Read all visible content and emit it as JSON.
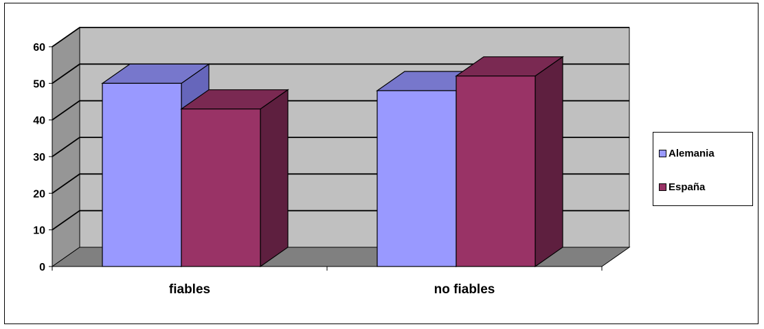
{
  "chart_data": {
    "type": "bar",
    "style": "3d-clustered-column",
    "categories": [
      "fiables",
      "no fiables"
    ],
    "series": [
      {
        "name": "Alemania",
        "values": [
          50,
          48
        ],
        "color": "#9999FF",
        "top_color": "#7777CC",
        "side_color": "#6666BB"
      },
      {
        "name": "España",
        "values": [
          43,
          52
        ],
        "color": "#993366",
        "top_color": "#7A2952",
        "side_color": "#5E1F3F"
      }
    ],
    "ylim": [
      0,
      60
    ],
    "yticks": [
      0,
      10,
      20,
      30,
      40,
      50,
      60
    ],
    "grid": true,
    "legend_position": "right",
    "wall_color": "#C0C0C0",
    "floor_color": "#808080",
    "side_wall_color": "#969696"
  }
}
